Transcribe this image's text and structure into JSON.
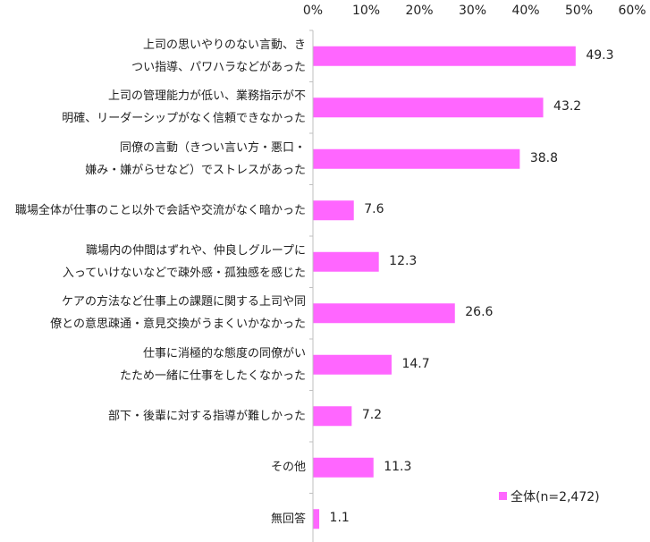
{
  "chart_data": {
    "type": "bar",
    "orientation": "horizontal",
    "categories": [
      "上司の思いやりのない言動、き\nつい指導、パワハラなどがあった",
      "上司の管理能力が低い、業務指示が不\n明確、リーダーシップがなく信頼できなかった",
      "同僚の言動（きつい言い方・悪口・\n嫌み・嫌がらせなど）でストレスがあった",
      "職場全体が仕事のこと以外で会話や交流がなく暗かった",
      "職場内の仲間はずれや、仲良しグループに\n入っていけないなどで疎外感・孤独感を感じた",
      "ケアの方法など仕事上の課題に関する上司や同\n僚との意思疎通・意見交換がうまくいかなかった",
      "仕事に消極的な態度の同僚がい\nたため一緒に仕事をしたくなかった",
      "部下・後輩に対する指導が難しかった",
      "その他",
      "無回答"
    ],
    "series": [
      {
        "name": "全体(n=2,472)",
        "values": [
          49.3,
          43.2,
          38.8,
          7.6,
          12.3,
          26.6,
          14.7,
          7.2,
          11.3,
          1.1
        ]
      }
    ],
    "value_labels": [
      "49.3",
      "43.2",
      "38.8",
      "7.6",
      "12.3",
      "26.6",
      "14.7",
      "7.2",
      "11.3",
      "1.1"
    ],
    "xlim": [
      0,
      60
    ],
    "xticks": [
      "0%",
      "10%",
      "20%",
      "30%",
      "40%",
      "50%",
      "60%"
    ],
    "legend_position": "bottom-right",
    "colors": {
      "bar": "#ff66ff",
      "axis": "#bfbfbf"
    }
  }
}
